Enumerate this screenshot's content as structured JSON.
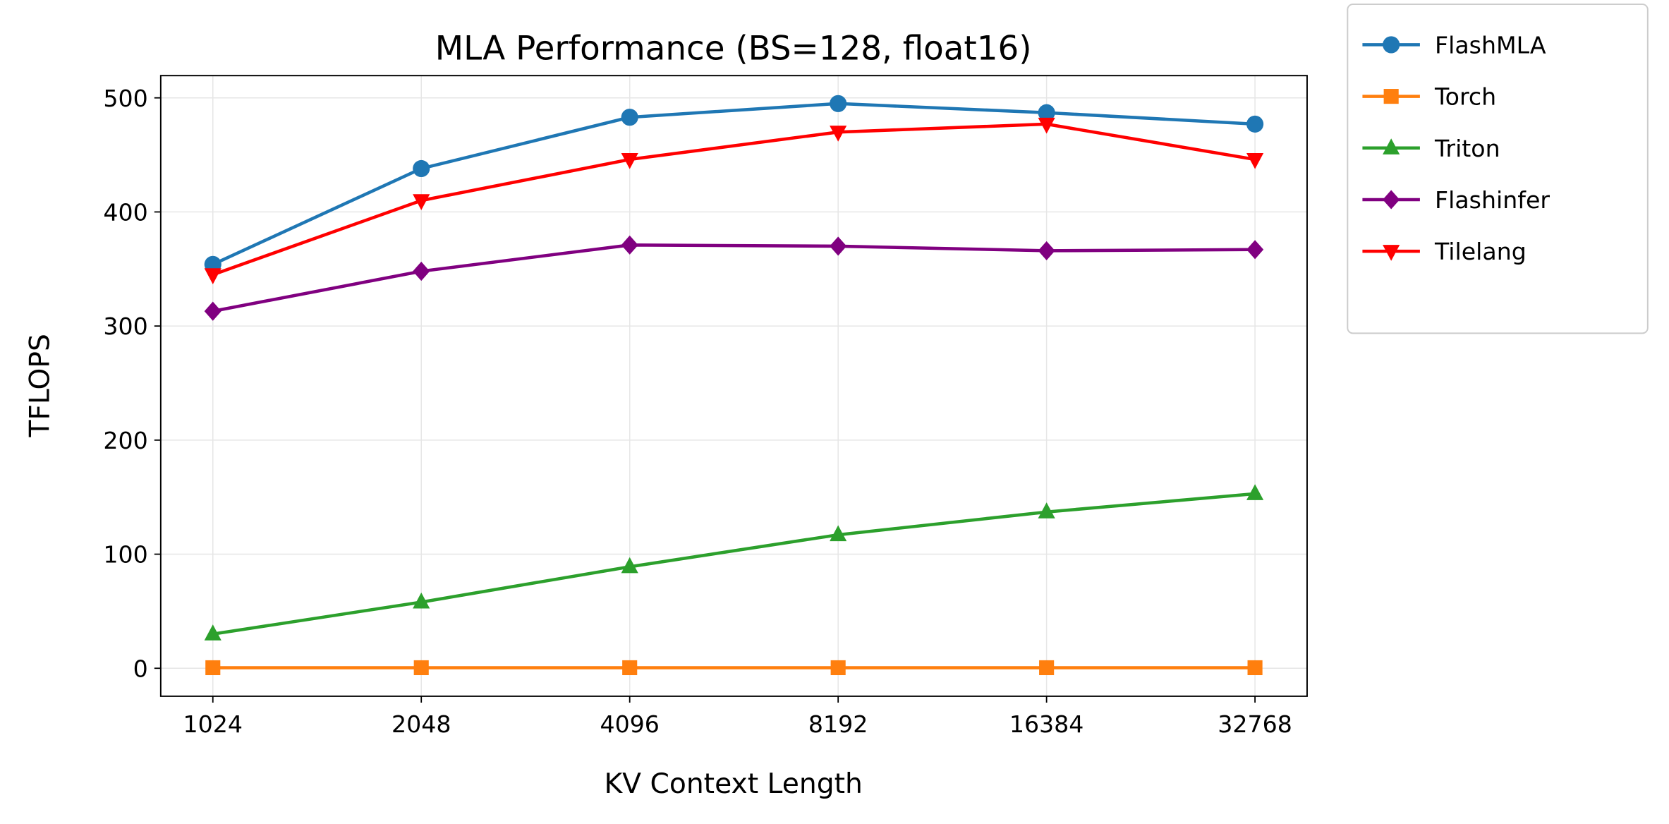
{
  "chart_data": {
    "type": "line",
    "title": "MLA Performance (BS=128, float16)",
    "xlabel": "KV Context Length",
    "ylabel": "TFLOPS",
    "x_scale": "log2",
    "x": [
      1024,
      2048,
      4096,
      8192,
      16384,
      32768
    ],
    "x_tick_labels": [
      "1024",
      "2048",
      "4096",
      "8192",
      "16384",
      "32768"
    ],
    "xlim": [
      861,
      38968
    ],
    "ylim": [
      -24.5,
      519.5
    ],
    "y_ticks": [
      0,
      100,
      200,
      300,
      400,
      500
    ],
    "y_tick_labels": [
      "0",
      "100",
      "200",
      "300",
      "400",
      "500"
    ],
    "grid": true,
    "legend_position": "outside-top-right",
    "series": [
      {
        "name": "FlashMLA",
        "color": "#1f77b4",
        "marker": "circle",
        "values": [
          354,
          438,
          483,
          495,
          487,
          477
        ]
      },
      {
        "name": "Torch",
        "color": "#ff7f0e",
        "marker": "square",
        "values": [
          0.5,
          0.5,
          0.5,
          0.5,
          0.5,
          0.5
        ]
      },
      {
        "name": "Triton",
        "color": "#2ca02c",
        "marker": "triangle-up",
        "values": [
          30,
          58,
          89,
          117,
          137,
          153
        ]
      },
      {
        "name": "Flashinfer",
        "color": "#800080",
        "marker": "diamond",
        "values": [
          313,
          348,
          371,
          370,
          366,
          367
        ]
      },
      {
        "name": "Tilelang",
        "color": "#ff0000",
        "marker": "triangle-down",
        "values": [
          345,
          410,
          446,
          470,
          477,
          446
        ]
      }
    ]
  }
}
